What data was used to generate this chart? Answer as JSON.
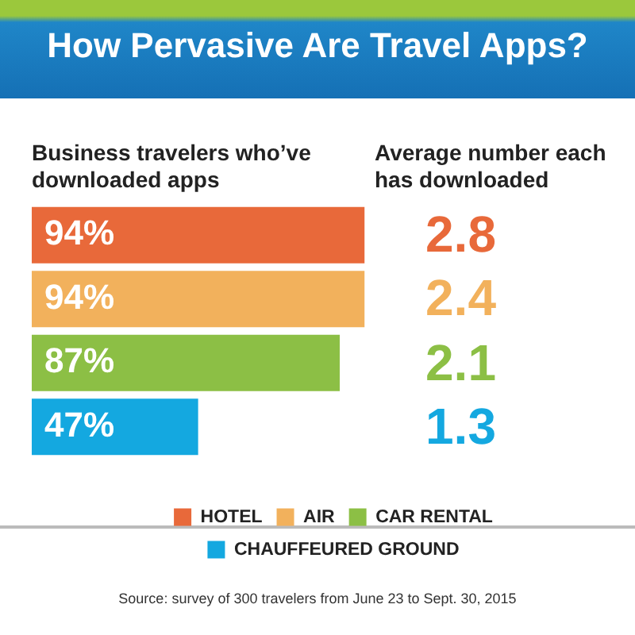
{
  "chart_data": [
    {
      "type": "bar",
      "title": "How Pervasive Are Travel Apps?",
      "subtitle": "Business travelers who’ve downloaded apps",
      "orientation": "horizontal",
      "stacked": true,
      "categories": [
        null,
        null,
        null,
        null
      ],
      "series": [
        {
          "name": "HOTEL",
          "color": "#e8693a",
          "values": [
            94,
            null,
            null,
            null
          ],
          "value_labels": [
            "94%",
            null,
            null,
            null
          ]
        },
        {
          "name": "AIR",
          "color": "#f2b15c",
          "values": [
            null,
            94,
            null,
            null
          ],
          "value_labels": [
            null,
            "94%",
            null,
            null
          ]
        },
        {
          "name": "CAR RENTAL",
          "color": "#8cbf45",
          "values": [
            null,
            null,
            87,
            null
          ],
          "value_labels": [
            null,
            null,
            "87%",
            null
          ]
        },
        {
          "name": "CHAUFFEURED GROUND",
          "color": "#14a8e0",
          "values": [
            null,
            null,
            null,
            47
          ],
          "value_labels": [
            null,
            null,
            null,
            "47%"
          ]
        }
      ],
      "legend": "bottom",
      "annotations": [
        "Source: survey of 300 travelers from June 23 to Sept. 30, 2015"
      ]
    },
    {
      "type": "other",
      "title": "Average number each has downloaded",
      "values": [
        2.8,
        2.4,
        2.1,
        1.3
      ],
      "colors": [
        "#e8693a",
        "#f2b15c",
        "#8cbf45",
        "#14a8e0"
      ],
      "data_labels": true
    }
  ]
}
